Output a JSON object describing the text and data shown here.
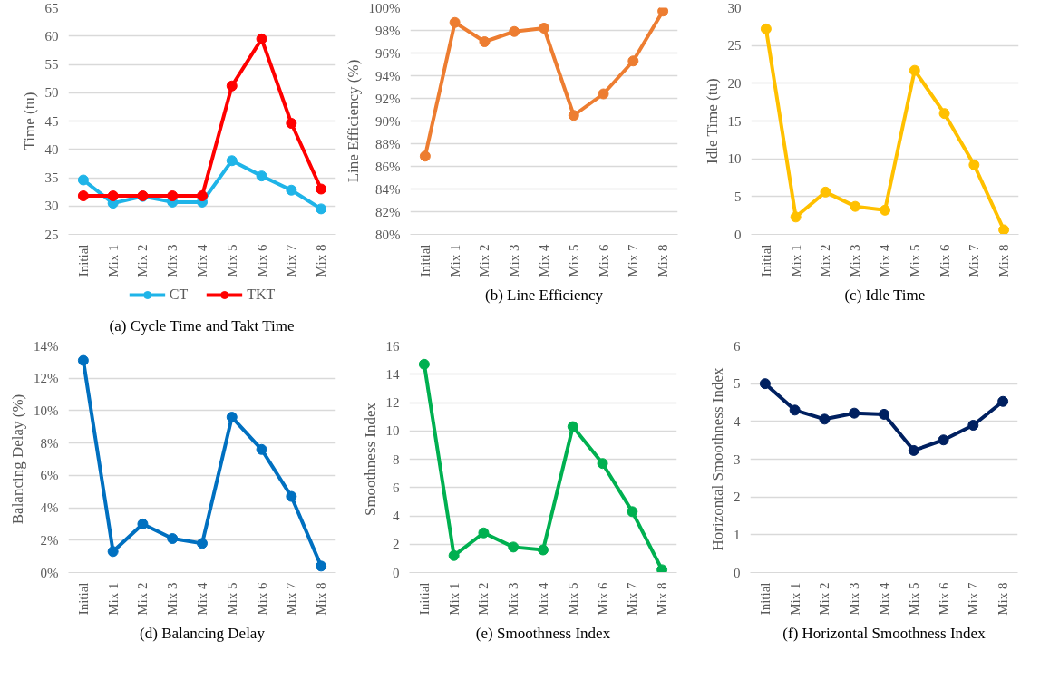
{
  "chart_data": [
    {
      "type": "line",
      "title": "(a) Cycle Time and Takt Time",
      "ylabel": "Time (tu)",
      "categories": [
        "Initial",
        "Mix 1",
        "Mix 2",
        "Mix 3",
        "Mix 4",
        "Mix 5",
        "Mix 6",
        "Mix 7",
        "Mix 8"
      ],
      "series": [
        {
          "name": "CT",
          "color": "#1fb4e8",
          "values": [
            34.6,
            30.5,
            31.7,
            30.7,
            30.7,
            38.0,
            35.3,
            32.8,
            29.5
          ]
        },
        {
          "name": "TKT",
          "color": "#ff0000",
          "values": [
            31.8,
            31.8,
            31.8,
            31.8,
            31.8,
            51.2,
            59.5,
            44.6,
            33.0
          ]
        }
      ],
      "ylim": [
        25,
        65
      ],
      "yticks": [
        25,
        30,
        35,
        40,
        45,
        50,
        55,
        60,
        65
      ],
      "grid": "y",
      "marker": "circle",
      "line_style": "solid",
      "legend": "bottom"
    },
    {
      "type": "line",
      "title": "(b) Line Efficiency",
      "ylabel": "Line Efficiency (%)",
      "categories": [
        "Initial",
        "Mix 1",
        "Mix 2",
        "Mix 3",
        "Mix 4",
        "Mix 5",
        "Mix 6",
        "Mix 7",
        "Mix 8"
      ],
      "series": [
        {
          "color": "#ed7d31",
          "values": [
            86.9,
            98.7,
            97.0,
            97.9,
            98.2,
            90.5,
            92.4,
            95.3,
            99.7
          ]
        }
      ],
      "ylim": [
        80,
        100
      ],
      "yticks": [
        {
          "value": 80,
          "label": "80%"
        },
        {
          "value": 82,
          "label": "82%"
        },
        {
          "value": 84,
          "label": "84%"
        },
        {
          "value": 86,
          "label": "86%"
        },
        {
          "value": 88,
          "label": "88%"
        },
        {
          "value": 90,
          "label": "90%"
        },
        {
          "value": 92,
          "label": "92%"
        },
        {
          "value": 94,
          "label": "94%"
        },
        {
          "value": 96,
          "label": "96%"
        },
        {
          "value": 98,
          "label": "98%"
        },
        {
          "value": 100,
          "label": "100%"
        }
      ],
      "grid": "y",
      "marker": "circle",
      "line_style": "solid"
    },
    {
      "type": "line",
      "title": "(c) Idle Time",
      "ylabel": "Idle Time (tu)",
      "categories": [
        "Initial",
        "Mix 1",
        "Mix 2",
        "Mix 3",
        "Mix 4",
        "Mix 5",
        "Mix 6",
        "Mix 7",
        "Mix 8"
      ],
      "series": [
        {
          "color": "#ffc000",
          "values": [
            27.2,
            2.3,
            5.6,
            3.7,
            3.2,
            21.7,
            16.0,
            9.2,
            0.6
          ]
        }
      ],
      "ylim": [
        0,
        30
      ],
      "yticks": [
        0,
        5,
        10,
        15,
        20,
        25,
        30
      ],
      "grid": "y",
      "marker": "circle",
      "line_style": "solid"
    },
    {
      "type": "line",
      "title": "(d) Balancing Delay",
      "ylabel": "Balancing Delay (%)",
      "categories": [
        "Initial",
        "Mix 1",
        "Mix 2",
        "Mix 3",
        "Mix 4",
        "Mix 5",
        "Mix 6",
        "Mix 7",
        "Mix 8"
      ],
      "series": [
        {
          "color": "#0070c0",
          "values": [
            13.1,
            1.3,
            3.0,
            2.1,
            1.8,
            9.6,
            7.6,
            4.7,
            0.4
          ]
        }
      ],
      "ylim": [
        0,
        14
      ],
      "yticks": [
        {
          "value": 0,
          "label": "0%"
        },
        {
          "value": 2,
          "label": "2%"
        },
        {
          "value": 4,
          "label": "4%"
        },
        {
          "value": 6,
          "label": "6%"
        },
        {
          "value": 8,
          "label": "8%"
        },
        {
          "value": 10,
          "label": "10%"
        },
        {
          "value": 12,
          "label": "12%"
        },
        {
          "value": 14,
          "label": "14%"
        }
      ],
      "grid": "y",
      "marker": "circle",
      "line_style": "solid"
    },
    {
      "type": "line",
      "title": "(e) Smoothness Index",
      "ylabel": "Smoothness Index",
      "categories": [
        "Initial",
        "Mix 1",
        "Mix 2",
        "Mix 3",
        "Mix 4",
        "Mix 5",
        "Mix 6",
        "Mix 7",
        "Mix 8"
      ],
      "series": [
        {
          "color": "#00b050",
          "values": [
            14.7,
            1.2,
            2.8,
            1.8,
            1.6,
            10.3,
            7.7,
            4.3,
            0.2
          ]
        }
      ],
      "ylim": [
        0,
        16
      ],
      "yticks": [
        0,
        2,
        4,
        6,
        8,
        10,
        12,
        14,
        16
      ],
      "grid": "y",
      "marker": "circle",
      "line_style": "solid"
    },
    {
      "type": "line",
      "title": "(f) Horizontal Smoothness Index",
      "ylabel": "Horizontal Smoothness Index",
      "categories": [
        "Initial",
        "Mix 1",
        "Mix 2",
        "Mix 3",
        "Mix 4",
        "Mix 5",
        "Mix 6",
        "Mix 7",
        "Mix 8"
      ],
      "series": [
        {
          "color": "#002060",
          "values": [
            5.0,
            4.3,
            4.06,
            4.22,
            4.19,
            3.23,
            3.51,
            3.9,
            4.53
          ]
        }
      ],
      "ylim": [
        0,
        6
      ],
      "yticks": [
        0,
        1,
        2,
        3,
        4,
        5,
        6
      ],
      "grid": "y",
      "marker": "circle",
      "line_style": "solid"
    }
  ]
}
